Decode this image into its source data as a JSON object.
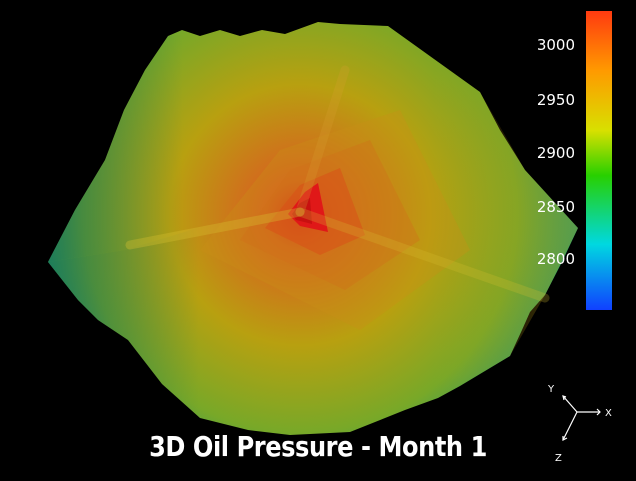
{
  "caption": "3D Oil Pressure - Month 1",
  "colorbar": {
    "ticks": [
      "3000",
      "2950",
      "2900",
      "2850",
      "2800"
    ],
    "colors": {
      "top": "#ff3a10",
      "orange": "#ff9a00",
      "yellow": "#d8e000",
      "green": "#28d000",
      "cyan": "#00d8e0",
      "blue": "#1040ff"
    }
  },
  "axes": {
    "x_label": "X",
    "y_label": "Y",
    "z_label": "Z"
  },
  "surface_colors": {
    "core": "#e01818",
    "inner": "#d86020",
    "mid": "#b8a010",
    "outer": "#78a828",
    "edge": "#109878"
  }
}
